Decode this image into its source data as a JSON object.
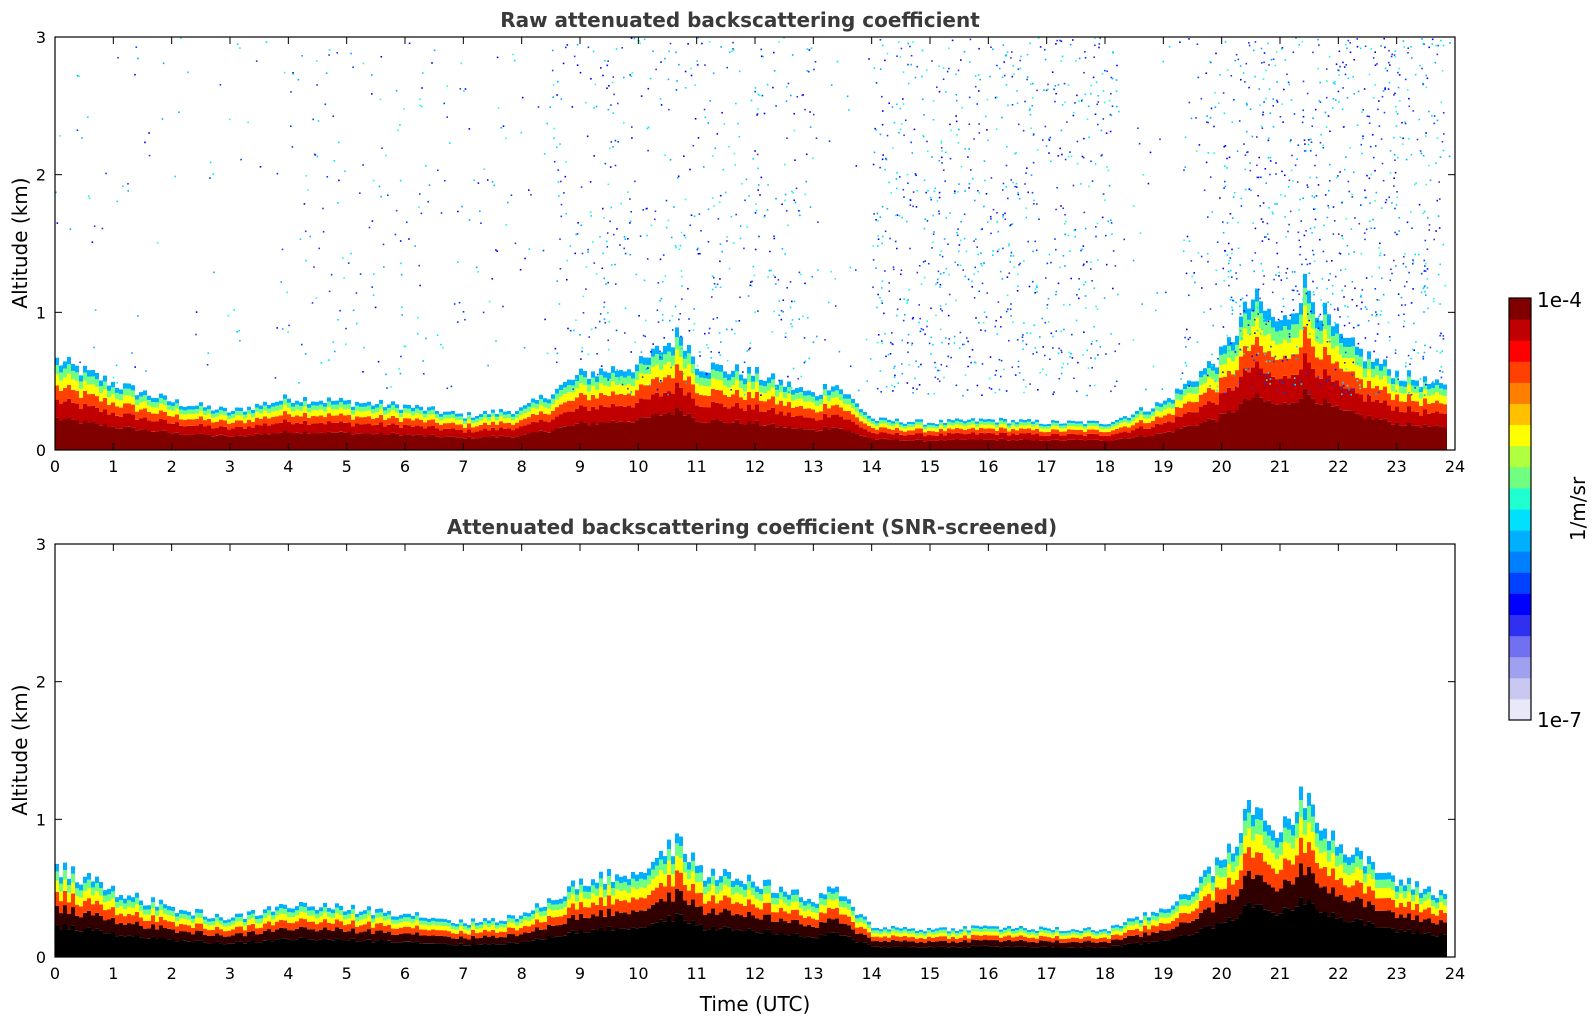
{
  "chart_data": [
    {
      "type": "heatmap",
      "title": "Raw attenuated backscattering coefficient",
      "xlabel": "",
      "ylabel": "Altitude (km)",
      "xlim": [
        0,
        24
      ],
      "ylim": [
        0,
        3
      ],
      "xticks": [
        "0",
        "1",
        "2",
        "3",
        "4",
        "5",
        "6",
        "7",
        "8",
        "9",
        "10",
        "11",
        "12",
        "13",
        "14",
        "15",
        "16",
        "17",
        "18",
        "19",
        "20",
        "21",
        "22",
        "23",
        "24"
      ],
      "yticks": [
        "0",
        "1",
        "2",
        "3"
      ],
      "mode": "raw",
      "boundary_layer_top_km": {
        "x": [
          0,
          1,
          2,
          3,
          4,
          5,
          6,
          7,
          8,
          9,
          10,
          10.7,
          11,
          12,
          13,
          13.3,
          14,
          15,
          16,
          17,
          18,
          19,
          20,
          20.5,
          21,
          21.4,
          22,
          23,
          23.8
        ],
        "y": [
          0.65,
          0.48,
          0.35,
          0.28,
          0.38,
          0.35,
          0.32,
          0.25,
          0.3,
          0.55,
          0.62,
          0.85,
          0.62,
          0.55,
          0.4,
          0.5,
          0.22,
          0.2,
          0.22,
          0.2,
          0.2,
          0.35,
          0.7,
          1.1,
          0.9,
          1.2,
          0.8,
          0.55,
          0.45
        ]
      }
    },
    {
      "type": "heatmap",
      "title": "Attenuated backscattering coefficient (SNR-screened)",
      "xlabel": "Time (UTC)",
      "ylabel": "Altitude (km)",
      "xlim": [
        0,
        24
      ],
      "ylim": [
        0,
        3
      ],
      "xticks": [
        "0",
        "1",
        "2",
        "3",
        "4",
        "5",
        "6",
        "7",
        "8",
        "9",
        "10",
        "11",
        "12",
        "13",
        "14",
        "15",
        "16",
        "17",
        "18",
        "19",
        "20",
        "21",
        "22",
        "23",
        "24"
      ],
      "yticks": [
        "0",
        "1",
        "2",
        "3"
      ],
      "mode": "screened",
      "boundary_layer_top_km": {
        "x": [
          0,
          1,
          2,
          3,
          4,
          5,
          6,
          7,
          8,
          9,
          10,
          10.7,
          11,
          12,
          13,
          13.3,
          14,
          15,
          16,
          17,
          18,
          19,
          20,
          20.5,
          21,
          21.4,
          22,
          23,
          23.8
        ],
        "y": [
          0.65,
          0.48,
          0.35,
          0.28,
          0.38,
          0.35,
          0.32,
          0.25,
          0.3,
          0.55,
          0.62,
          0.85,
          0.62,
          0.55,
          0.4,
          0.5,
          0.22,
          0.2,
          0.22,
          0.2,
          0.2,
          0.35,
          0.7,
          1.1,
          0.9,
          1.2,
          0.8,
          0.55,
          0.45
        ]
      }
    }
  ],
  "colorbar": {
    "label": "1/m/sr",
    "max_label": "1e-4",
    "min_label": "1e-7",
    "colors": [
      "#e8e8f8",
      "#c8c8f0",
      "#a0a0f0",
      "#7070f0",
      "#3030f0",
      "#0000ff",
      "#0040ff",
      "#0080ff",
      "#00b0ff",
      "#00e0ff",
      "#20ffd0",
      "#70ff80",
      "#b0ff40",
      "#ffff00",
      "#ffc000",
      "#ff8000",
      "#ff4000",
      "#ff0000",
      "#c00000",
      "#800000"
    ]
  }
}
